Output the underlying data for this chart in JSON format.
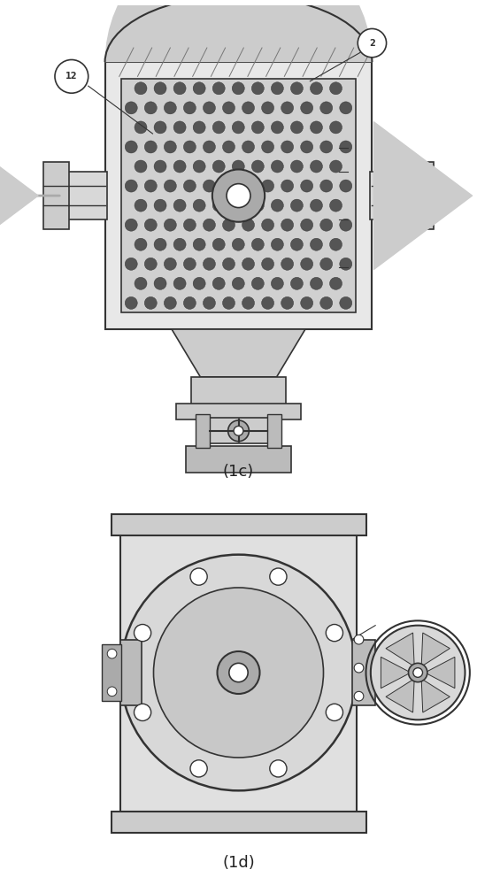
{
  "bg_color": "#ffffff",
  "line_color": "#555555",
  "dark_line": "#333333",
  "light_gray": "#aaaaaa",
  "mid_gray": "#888888",
  "dot_color": "#444444",
  "hatch_color": "#999999",
  "label_1c": "(1c)",
  "label_1d": "(1d)",
  "label_12": "®",
  "label_2": "²",
  "arrow_color": "#cccccc",
  "fig_width": 5.39,
  "fig_height": 10.0,
  "dpi": 100
}
